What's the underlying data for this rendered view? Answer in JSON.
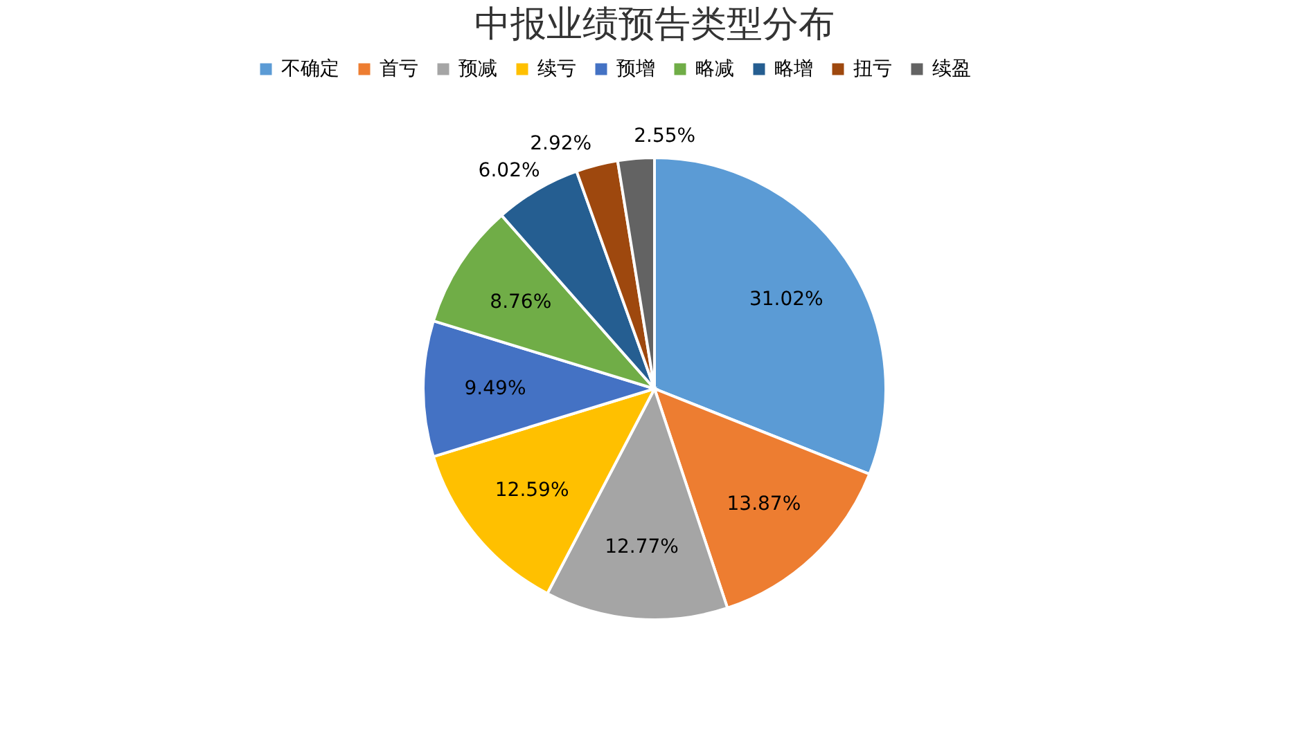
{
  "chart_data": {
    "type": "pie",
    "title": "中报业绩预告类型分布",
    "categories": [
      "不确定",
      "首亏",
      "预减",
      "续亏",
      "预增",
      "略减",
      "略增",
      "扭亏",
      "续盈"
    ],
    "values": [
      31.02,
      13.87,
      12.77,
      12.59,
      9.49,
      8.76,
      6.02,
      2.92,
      2.55
    ],
    "colors": [
      "#5b9bd5",
      "#ed7d31",
      "#a5a5a5",
      "#ffc000",
      "#4472c4",
      "#70ad47",
      "#255e91",
      "#9e480e",
      "#636363"
    ],
    "value_labels": [
      "31.02%",
      "13.87%",
      "12.77%",
      "12.59%",
      "9.49%",
      "8.76%",
      "6.02%",
      "2.92%",
      "2.55%"
    ],
    "legend": "top"
  }
}
